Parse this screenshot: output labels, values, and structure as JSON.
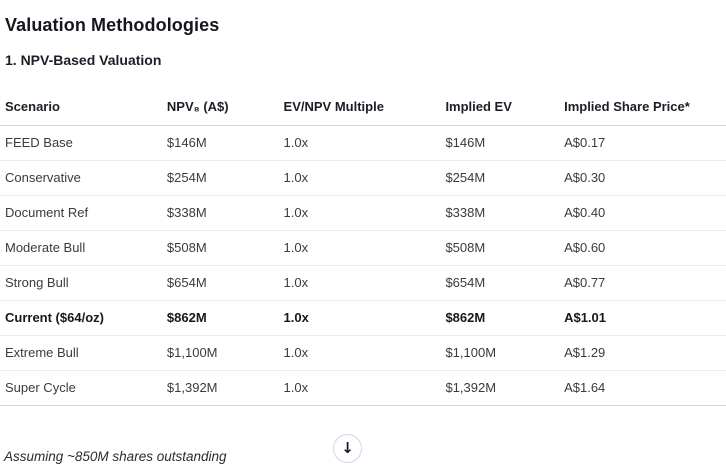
{
  "page": {
    "title": "Valuation Methodologies",
    "section_heading": "1. NPV-Based Valuation",
    "footnote": "Assuming ~850M shares outstanding"
  },
  "table": {
    "columns": [
      {
        "label": "Scenario"
      },
      {
        "label": "NPV₈ (A$)"
      },
      {
        "label": "EV/NPV Multiple"
      },
      {
        "label": "Implied EV"
      },
      {
        "label": "Implied Share Price*"
      }
    ],
    "rows": [
      {
        "scenario": "FEED Base",
        "npv": "$146M",
        "ev_npv_multiple": "1.0x",
        "implied_ev": "$146M",
        "implied_share_price": "A$0.17",
        "emphasis": false
      },
      {
        "scenario": "Conservative",
        "npv": "$254M",
        "ev_npv_multiple": "1.0x",
        "implied_ev": "$254M",
        "implied_share_price": "A$0.30",
        "emphasis": false
      },
      {
        "scenario": "Document Ref",
        "npv": "$338M",
        "ev_npv_multiple": "1.0x",
        "implied_ev": "$338M",
        "implied_share_price": "A$0.40",
        "emphasis": false
      },
      {
        "scenario": "Moderate Bull",
        "npv": "$508M",
        "ev_npv_multiple": "1.0x",
        "implied_ev": "$508M",
        "implied_share_price": "A$0.60",
        "emphasis": false
      },
      {
        "scenario": "Strong Bull",
        "npv": "$654M",
        "ev_npv_multiple": "1.0x",
        "implied_ev": "$654M",
        "implied_share_price": "A$0.77",
        "emphasis": false
      },
      {
        "scenario": "Current ($64/oz)",
        "npv": "$862M",
        "ev_npv_multiple": "1.0x",
        "implied_ev": "$862M",
        "implied_share_price": "A$1.01",
        "emphasis": true
      },
      {
        "scenario": "Extreme Bull",
        "npv": "$1,100M",
        "ev_npv_multiple": "1.0x",
        "implied_ev": "$1,100M",
        "implied_share_price": "A$1.29",
        "emphasis": false
      },
      {
        "scenario": "Super Cycle",
        "npv": "$1,392M",
        "ev_npv_multiple": "1.0x",
        "implied_ev": "$1,392M",
        "implied_share_price": "A$1.64",
        "emphasis": false
      }
    ]
  },
  "scroll_button": {
    "icon": "arrow-down",
    "glyph": "↓"
  },
  "colors": {
    "background": "#ffffff",
    "heading_text": "#16161e",
    "body_text": "#3a3a43",
    "row_divider": "#ececf1",
    "strong_divider": "#d2d2d9",
    "button_border": "#d8d1ee",
    "arrow": "#1b1b25"
  }
}
